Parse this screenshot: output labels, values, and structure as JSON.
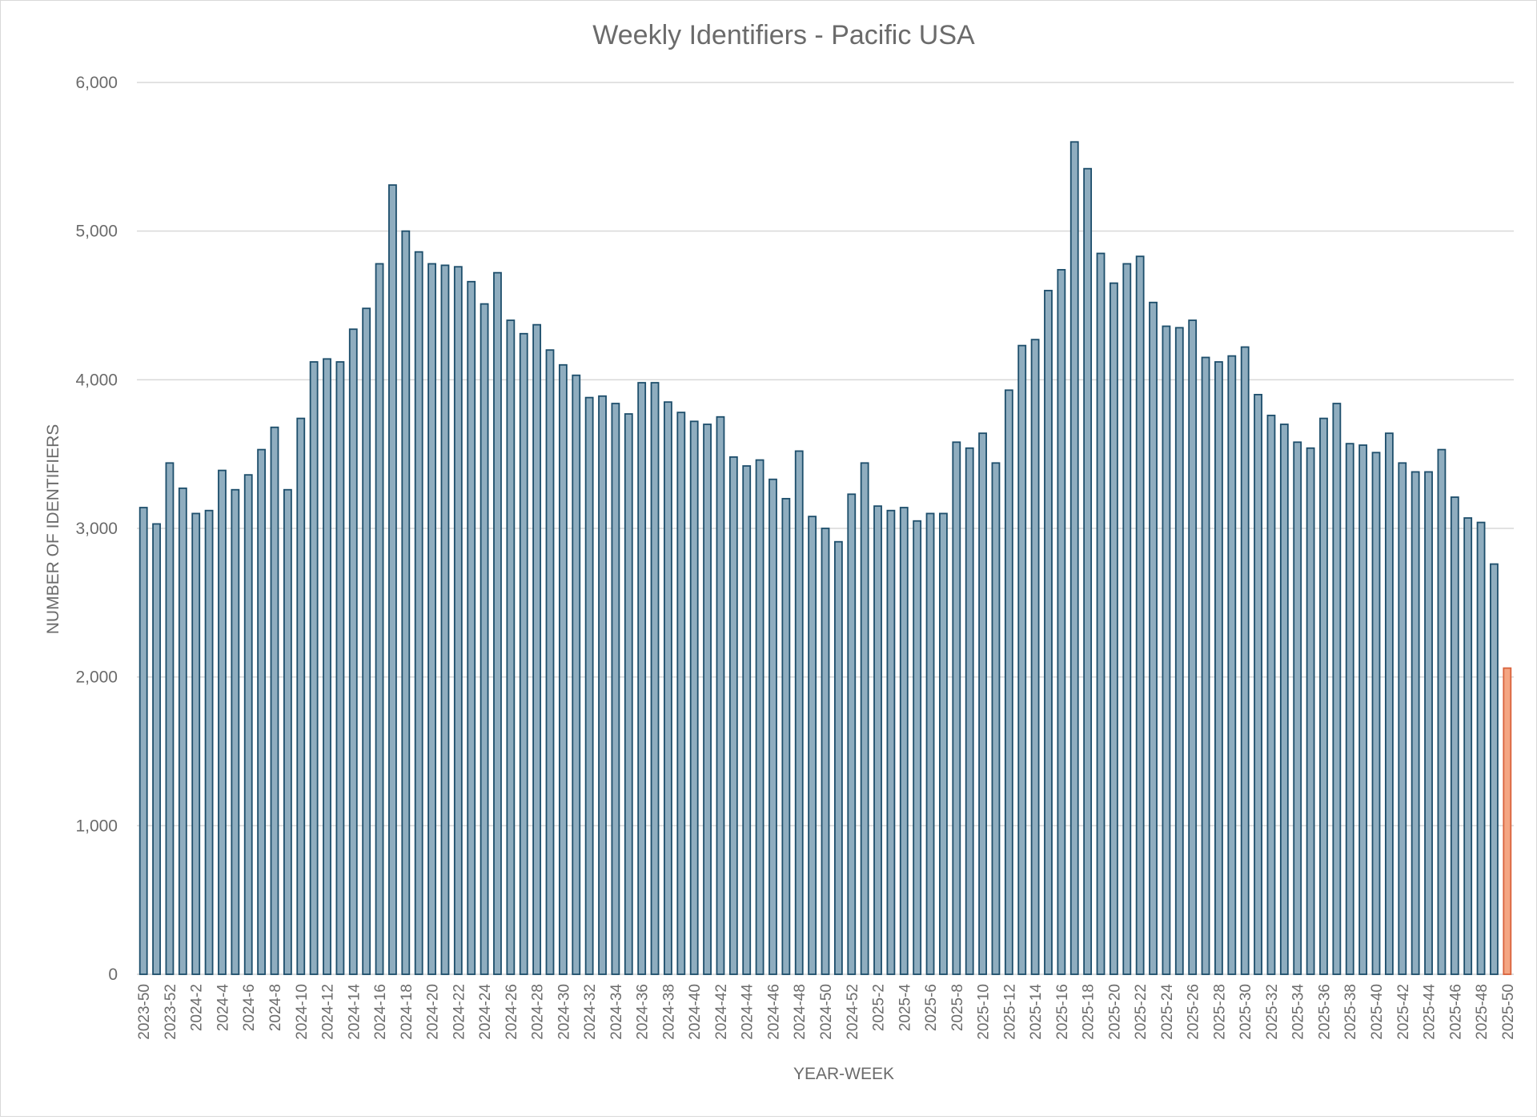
{
  "chart_data": {
    "type": "bar",
    "title": "Weekly Identifiers - Pacific USA",
    "xlabel": "YEAR-WEEK",
    "ylabel": "NUMBER OF IDENTIFIERS",
    "ylim": [
      0,
      6000
    ],
    "yticks": [
      0,
      1000,
      2000,
      3000,
      4000,
      5000,
      6000
    ],
    "ytick_labels": [
      "0",
      "1,000",
      "2,000",
      "3,000",
      "4,000",
      "5,000",
      "6,000"
    ],
    "grid": true,
    "legend": "none",
    "label_every": 2,
    "colors": {
      "bar_fill": "#8fadbf",
      "bar_stroke": "#1d4e6b",
      "highlight_fill": "#f4a582",
      "highlight_stroke": "#d9623b",
      "gridline": "#d9d9d9",
      "text": "#6b6b6b"
    },
    "highlight_last": true,
    "categories": [
      "2023-50",
      "2023-51",
      "2023-52",
      "2024-1",
      "2024-2",
      "2024-3",
      "2024-4",
      "2024-5",
      "2024-6",
      "2024-7",
      "2024-8",
      "2024-9",
      "2024-10",
      "2024-11",
      "2024-12",
      "2024-13",
      "2024-14",
      "2024-15",
      "2024-16",
      "2024-17",
      "2024-18",
      "2024-19",
      "2024-20",
      "2024-21",
      "2024-22",
      "2024-23",
      "2024-24",
      "2024-25",
      "2024-26",
      "2024-27",
      "2024-28",
      "2024-29",
      "2024-30",
      "2024-31",
      "2024-32",
      "2024-33",
      "2024-34",
      "2024-35",
      "2024-36",
      "2024-37",
      "2024-38",
      "2024-39",
      "2024-40",
      "2024-41",
      "2024-42",
      "2024-43",
      "2024-44",
      "2024-45",
      "2024-46",
      "2024-47",
      "2024-48",
      "2024-49",
      "2024-50",
      "2024-51",
      "2024-52",
      "2025-1",
      "2025-2",
      "2025-3",
      "2025-4",
      "2025-5",
      "2025-6",
      "2025-7",
      "2025-8",
      "2025-9",
      "2025-10",
      "2025-11",
      "2025-12",
      "2025-13",
      "2025-14",
      "2025-15",
      "2025-16",
      "2025-17",
      "2025-18",
      "2025-19",
      "2025-20",
      "2025-21",
      "2025-22",
      "2025-23",
      "2025-24",
      "2025-25",
      "2025-26",
      "2025-27",
      "2025-28",
      "2025-29",
      "2025-30",
      "2025-31",
      "2025-32",
      "2025-33",
      "2025-34",
      "2025-35",
      "2025-36",
      "2025-37",
      "2025-38",
      "2025-39",
      "2025-40",
      "2025-41",
      "2025-42",
      "2025-43",
      "2025-44",
      "2025-45",
      "2025-46",
      "2025-47",
      "2025-48",
      "2025-49",
      "2025-50"
    ],
    "values": [
      3140,
      3030,
      3440,
      3270,
      3100,
      3120,
      3390,
      3260,
      3360,
      3530,
      3680,
      3260,
      3740,
      4120,
      4140,
      4120,
      4340,
      4480,
      4780,
      5310,
      5000,
      4860,
      4780,
      4770,
      4760,
      4660,
      4510,
      4720,
      4400,
      4310,
      4370,
      4200,
      4100,
      4030,
      3880,
      3890,
      3840,
      3770,
      3980,
      3980,
      3850,
      3780,
      3720,
      3700,
      3750,
      3480,
      3420,
      3460,
      3330,
      3200,
      3520,
      3080,
      3000,
      2910,
      3230,
      3440,
      3150,
      3120,
      3140,
      3050,
      3100,
      3100,
      3580,
      3540,
      3640,
      3440,
      3930,
      4230,
      4270,
      4600,
      4740,
      5600,
      5420,
      4850,
      4650,
      4780,
      4830,
      4520,
      4360,
      4350,
      4400,
      4150,
      4120,
      4160,
      4220,
      3900,
      3760,
      3700,
      3580,
      3540,
      3740,
      3840,
      3570,
      3560,
      3510,
      3640,
      3440,
      3380,
      3380,
      3530,
      3210,
      3070,
      3040,
      2760,
      2060
    ]
  }
}
